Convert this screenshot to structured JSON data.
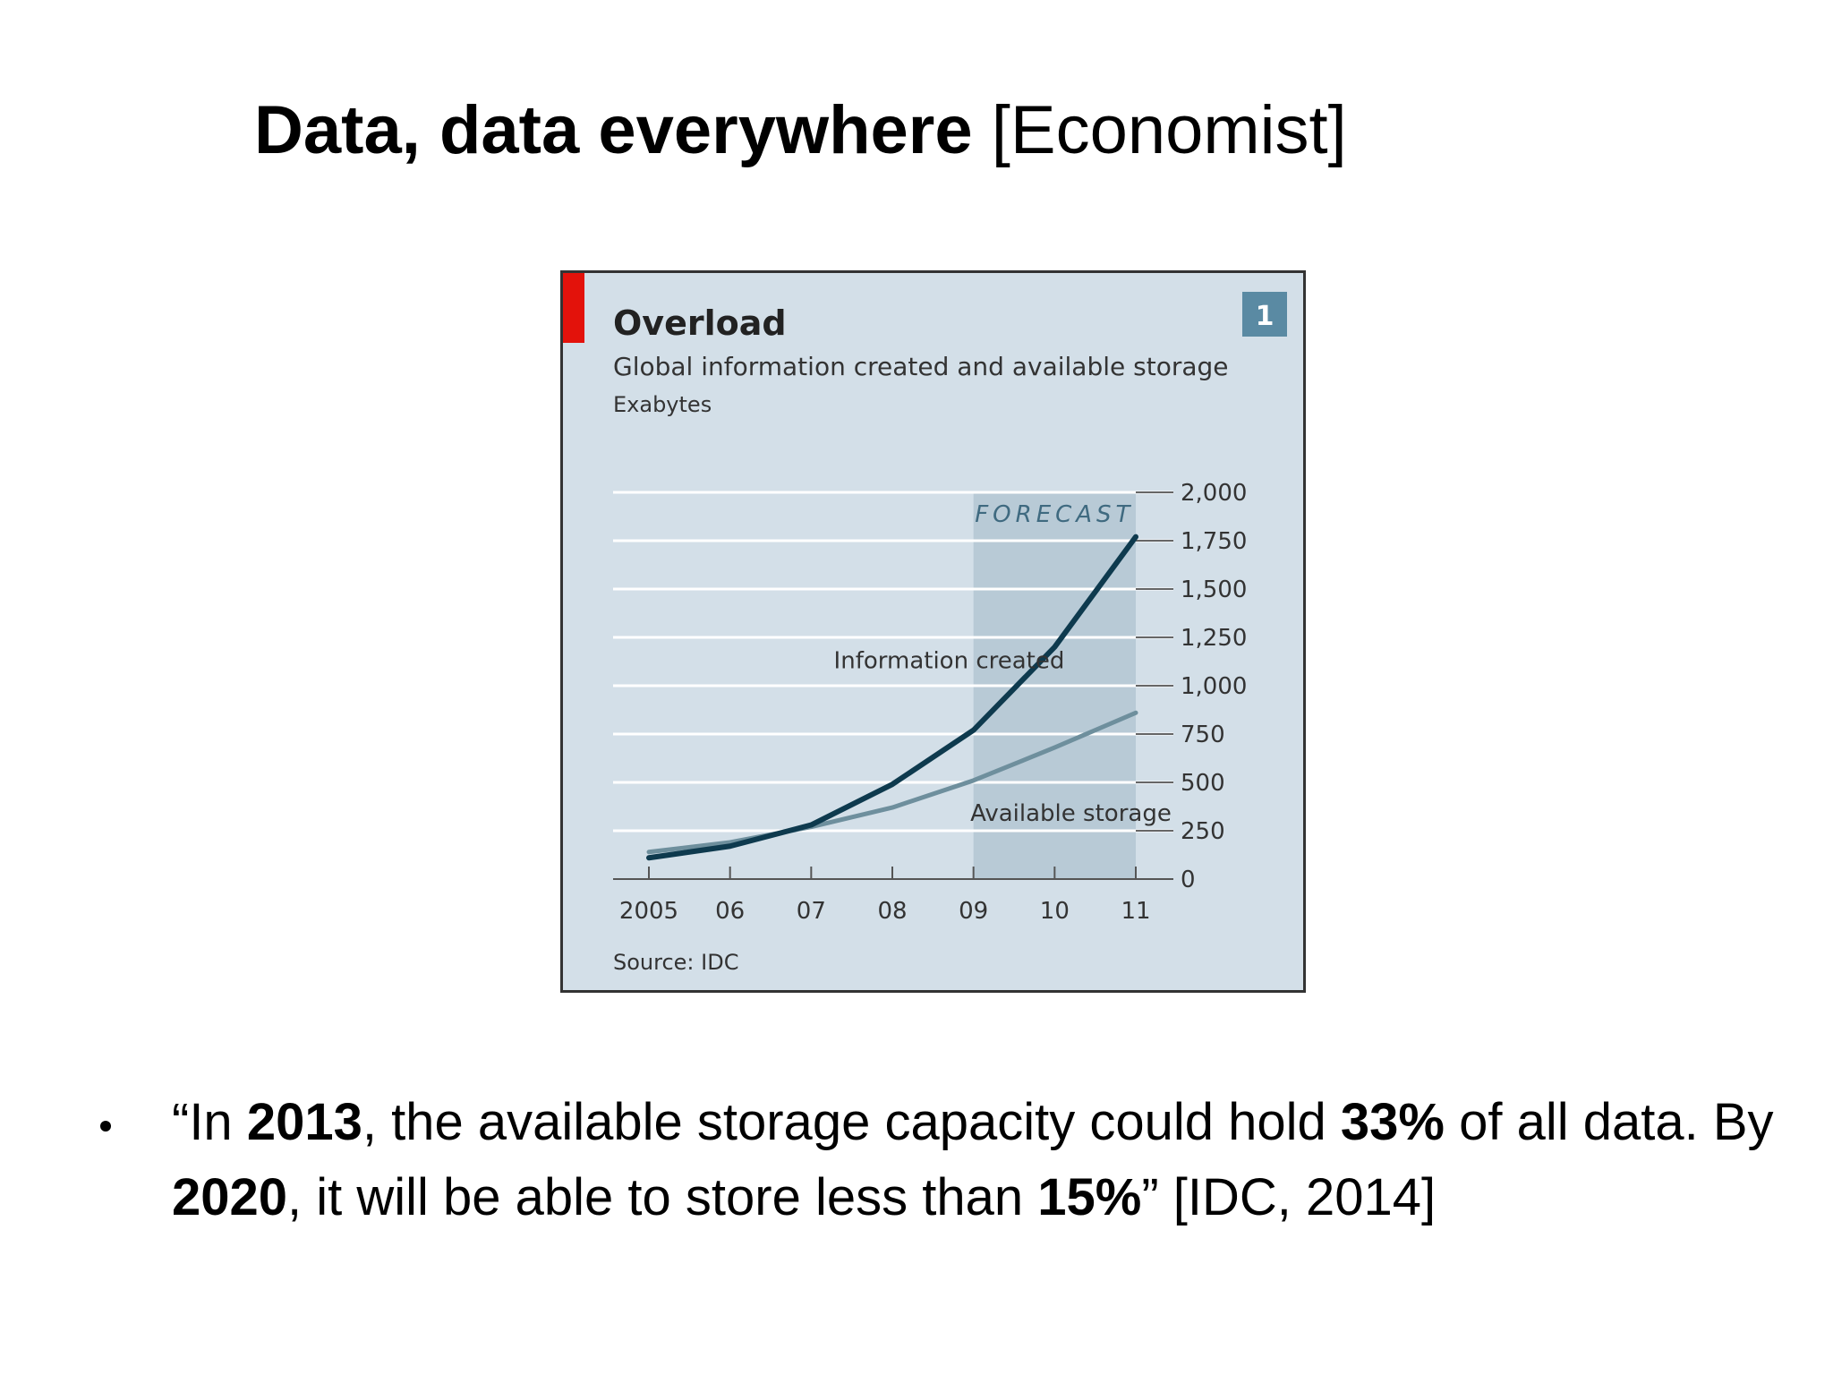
{
  "slide": {
    "title_bold": "Data, data everywhere",
    "title_cite": " [Economist]",
    "quote": {
      "p1": "“In ",
      "b1": "2013",
      "p2": ", the available storage capacity could hold ",
      "b2": "33%",
      "p3": " of all data. By ",
      "b3": "2020",
      "p4": ", it will be able to store less than ",
      "b4": "15%",
      "p5": "” [IDC, 2014]"
    }
  },
  "chart_data": {
    "type": "line",
    "title": "Overload",
    "subtitle": "Global information created and available storage",
    "unit": "Exabytes",
    "badge": "1",
    "forecast_label": "FORECAST",
    "forecast_range": [
      2009,
      2011
    ],
    "source": "Source: IDC",
    "x": [
      2005,
      2006,
      2007,
      2008,
      2009,
      2010,
      2011
    ],
    "x_tick_labels": [
      "2005",
      "06",
      "07",
      "08",
      "09",
      "10",
      "11"
    ],
    "ylim": [
      0,
      2000
    ],
    "y_ticks": [
      0,
      250,
      500,
      750,
      1000,
      1250,
      1500,
      1750,
      2000
    ],
    "y_tick_labels": [
      "0",
      "250",
      "500",
      "750",
      "1,000",
      "1,250",
      "1,500",
      "1,750",
      "2,000"
    ],
    "grid": true,
    "series": [
      {
        "name": "Information created",
        "values": [
          110,
          170,
          280,
          490,
          770,
          1200,
          1770
        ],
        "color": "#0e3a4e"
      },
      {
        "name": "Available storage",
        "values": [
          140,
          190,
          270,
          370,
          510,
          680,
          860
        ],
        "color": "#6e8f9d"
      }
    ],
    "colors": {
      "background": "#d3dfe8",
      "forecast": "#b8cad6",
      "grid": "#ffffff",
      "accent": "#e3120b",
      "badge": "#5a8aa3",
      "text": "#333333"
    }
  }
}
